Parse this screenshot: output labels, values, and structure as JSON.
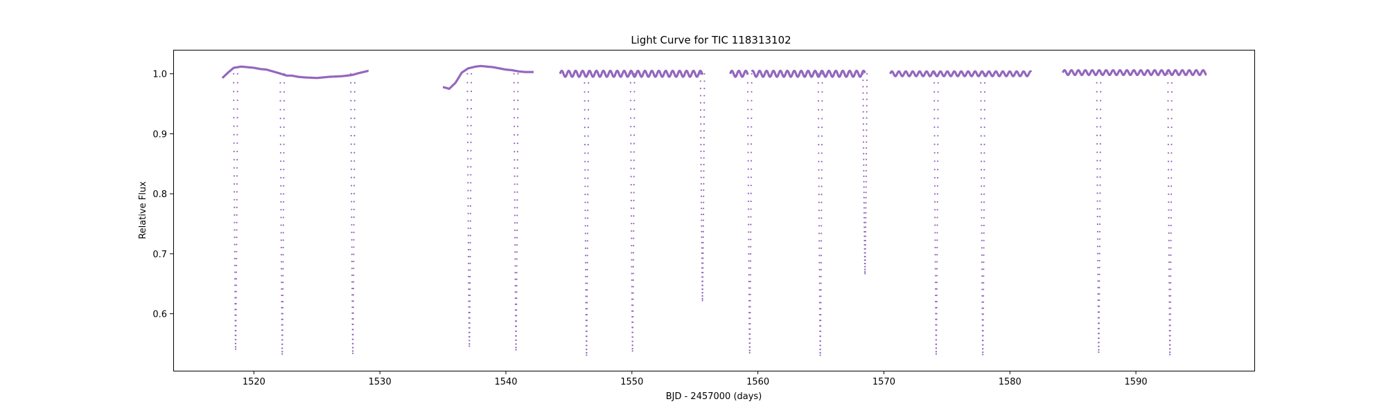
{
  "chart_data": {
    "type": "scatter",
    "title": "Light Curve for TIC 118313102",
    "xlabel": "BJD - 2457000 (days)",
    "ylabel": "Relative Flux",
    "xlim": [
      1513.6,
      1599.4
    ],
    "ylim": [
      0.505,
      1.04
    ],
    "xticks": [
      1520,
      1530,
      1540,
      1550,
      1560,
      1570,
      1580,
      1590
    ],
    "yticks": [
      0.6,
      0.7,
      0.8,
      0.9,
      1.0
    ],
    "yticklabels": [
      "0.6",
      "0.7",
      "0.8",
      "0.9",
      "1.0"
    ],
    "grid": false,
    "legend": "none",
    "marker_color": "#9467bd",
    "segments": [
      {
        "start": 1517.5,
        "end": 1529.1,
        "baseline": 1.0,
        "pts": [
          [
            1517.5,
            0.993
          ],
          [
            1518.0,
            1.003
          ],
          [
            1518.4,
            1.01
          ],
          [
            1519.0,
            1.012
          ],
          [
            1519.5,
            1.011
          ],
          [
            1520.0,
            1.01
          ],
          [
            1520.5,
            1.008
          ],
          [
            1521.0,
            1.007
          ],
          [
            1521.5,
            1.004
          ],
          [
            1522.0,
            1.001
          ],
          [
            1522.6,
            0.997
          ],
          [
            1523.0,
            0.997
          ],
          [
            1523.5,
            0.995
          ],
          [
            1524.0,
            0.994
          ],
          [
            1525.0,
            0.993
          ],
          [
            1526.0,
            0.995
          ],
          [
            1527.0,
            0.996
          ],
          [
            1527.8,
            0.998
          ],
          [
            1528.3,
            1.001
          ],
          [
            1528.7,
            1.003
          ],
          [
            1529.1,
            1.005
          ]
        ]
      },
      {
        "start": 1535.0,
        "end": 1542.2,
        "baseline": 1.0,
        "pts": [
          [
            1535.0,
            0.978
          ],
          [
            1535.5,
            0.975
          ],
          [
            1536.0,
            0.985
          ],
          [
            1536.5,
            1.002
          ],
          [
            1537.0,
            1.009
          ],
          [
            1537.6,
            1.012
          ],
          [
            1538.0,
            1.013
          ],
          [
            1538.5,
            1.012
          ],
          [
            1539.0,
            1.011
          ],
          [
            1539.5,
            1.009
          ],
          [
            1540.0,
            1.007
          ],
          [
            1540.5,
            1.006
          ],
          [
            1541.0,
            1.004
          ],
          [
            1541.5,
            1.003
          ],
          [
            1542.2,
            1.003
          ]
        ]
      },
      {
        "start": 1544.3,
        "end": 1555.6,
        "baseline": 1.0,
        "wave_amp": 0.005,
        "wave_period": 0.55
      },
      {
        "start": 1557.8,
        "end": 1568.5,
        "baseline": 1.0,
        "gap": [
          1559.2,
          1559.5
        ],
        "wave_amp": 0.005,
        "wave_period": 0.55
      },
      {
        "start": 1570.5,
        "end": 1581.7,
        "baseline": 1.0,
        "wave_amp": 0.004,
        "wave_period": 0.55
      },
      {
        "start": 1584.2,
        "end": 1595.6,
        "baseline": 1.002,
        "wave_amp": 0.004,
        "wave_period": 0.55
      }
    ],
    "dips": [
      {
        "t": 1518.55,
        "depth": 0.541
      },
      {
        "t": 1522.25,
        "depth": 0.533
      },
      {
        "t": 1527.85,
        "depth": 0.534
      },
      {
        "t": 1537.1,
        "depth": 0.546
      },
      {
        "t": 1540.8,
        "depth": 0.54
      },
      {
        "t": 1546.4,
        "depth": 0.531
      },
      {
        "t": 1550.05,
        "depth": 0.538
      },
      {
        "t": 1555.6,
        "depth": 0.622
      },
      {
        "t": 1559.35,
        "depth": 0.535
      },
      {
        "t": 1564.95,
        "depth": 0.531
      },
      {
        "t": 1568.5,
        "depth": 0.667
      },
      {
        "t": 1574.15,
        "depth": 0.533
      },
      {
        "t": 1577.85,
        "depth": 0.532
      },
      {
        "t": 1587.05,
        "depth": 0.536
      },
      {
        "t": 1592.7,
        "depth": 0.532
      }
    ]
  }
}
